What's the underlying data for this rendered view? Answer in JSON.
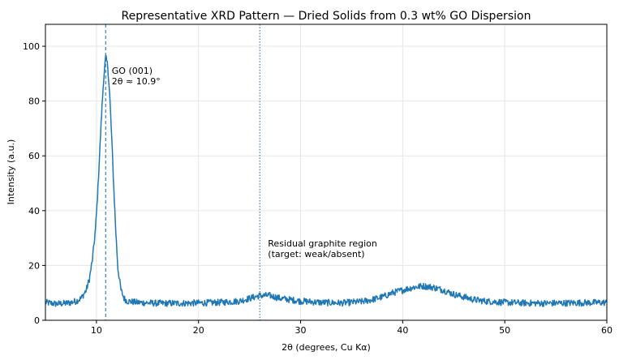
{
  "chart_data": {
    "type": "line",
    "title": "Representative XRD Pattern — Dried Solids from 0.3 wt% GO Dispersion",
    "xlabel": "2θ (degrees, Cu Kα)",
    "ylabel": "Intensity (a.u.)",
    "xlim": [
      5,
      60
    ],
    "ylim": [
      0,
      108
    ],
    "xticks": [
      10,
      20,
      30,
      40,
      50,
      60
    ],
    "yticks": [
      0,
      20,
      40,
      60,
      80,
      100
    ],
    "grid": true,
    "line_color": "#1f77b4",
    "series": [
      {
        "x": [
          5,
          6,
          7,
          7.5,
          8,
          8.5,
          9,
          9.3,
          9.6,
          9.9,
          10.1,
          10.3,
          10.5,
          10.7,
          10.9,
          11.1,
          11.3,
          11.5,
          11.7,
          11.9,
          12.1,
          12.4,
          12.7,
          13,
          14,
          16,
          18,
          20,
          22,
          24,
          25,
          26,
          27,
          28,
          29,
          30,
          32,
          34,
          36,
          37,
          38,
          39,
          40,
          41,
          42,
          43,
          44,
          45,
          46,
          47,
          48,
          50,
          52,
          54,
          56,
          58,
          60
        ],
        "y": [
          6.5,
          6,
          6.2,
          6.5,
          7,
          8,
          11,
          15,
          22,
          33,
          45,
          60,
          75,
          88,
          96,
          93,
          82,
          66,
          48,
          32,
          19,
          11,
          8,
          7,
          6.5,
          6.2,
          6.2,
          6.3,
          6.5,
          7,
          8,
          9,
          9,
          8,
          7.5,
          7,
          6.5,
          6.3,
          6.8,
          7.5,
          8.5,
          10,
          11,
          12,
          12.5,
          12,
          11,
          9.5,
          8.5,
          7.5,
          7,
          6.5,
          6.3,
          6.2,
          6.3,
          6.4,
          6.5
        ],
        "noise_amplitude": 1.2
      }
    ],
    "vlines": [
      {
        "x": 10.9,
        "style": "dashed"
      },
      {
        "x": 26.0,
        "style": "dotted"
      }
    ],
    "annotations": [
      {
        "x": 11.5,
        "y": 90,
        "lines": [
          "GO (001)",
          "2θ ≈ 10.9°"
        ]
      },
      {
        "x": 26.8,
        "y": 27,
        "lines": [
          "Residual graphite region",
          "(target: weak/absent)"
        ]
      }
    ]
  }
}
